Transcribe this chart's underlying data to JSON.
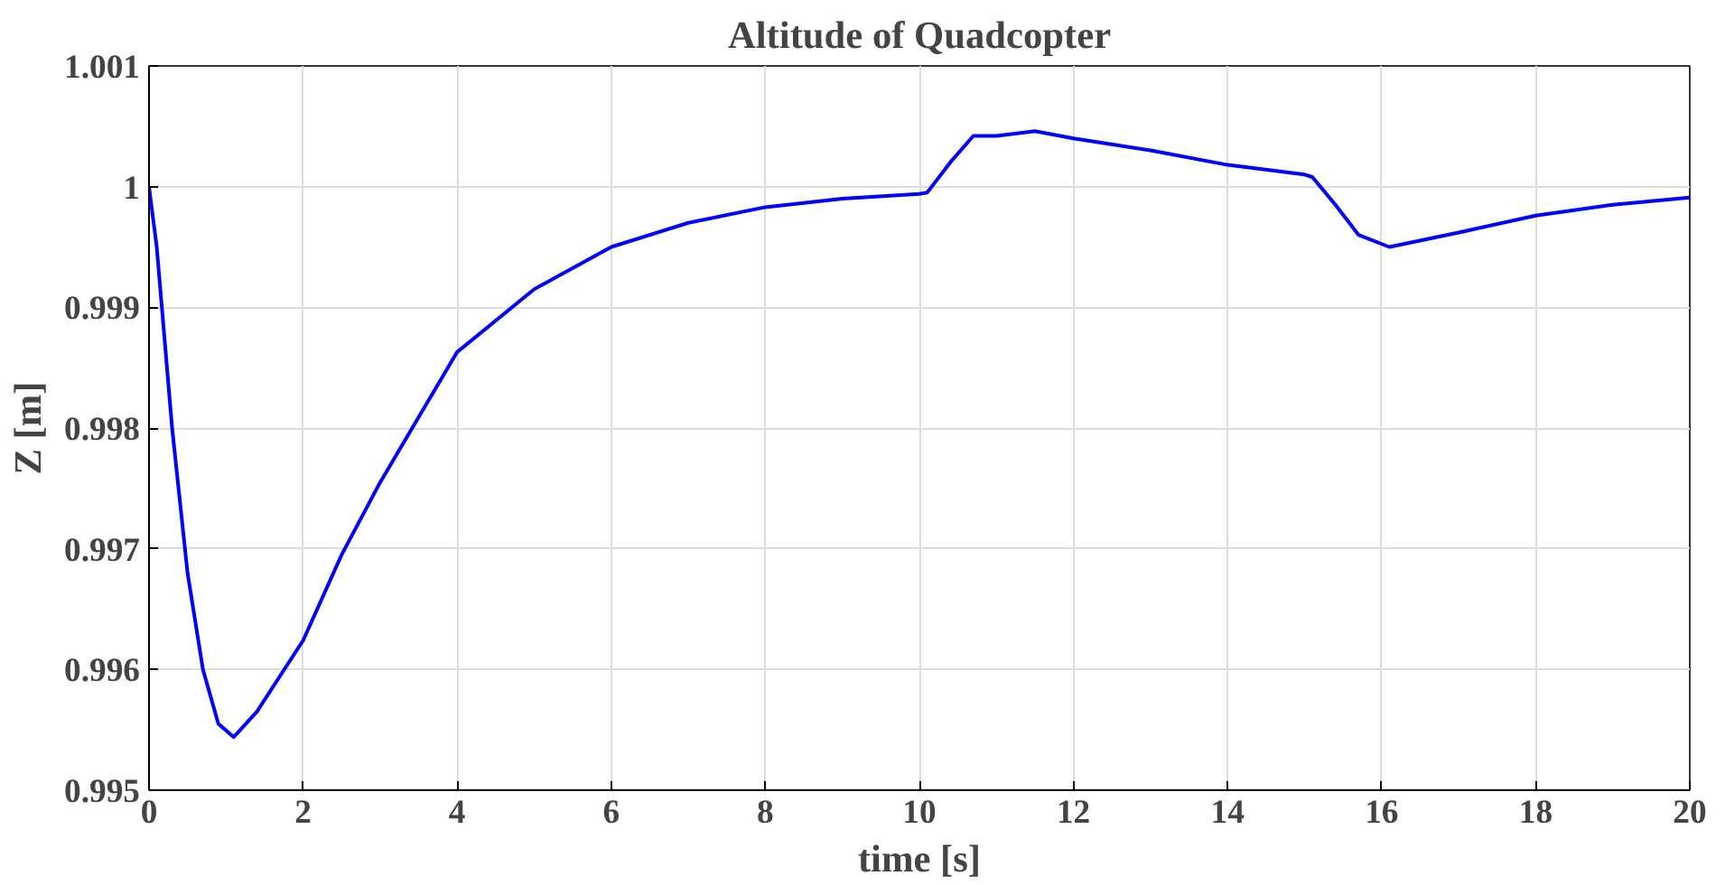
{
  "chart_data": {
    "type": "line",
    "title": "Altitude of Quadcopter",
    "xlabel": "time [s]",
    "ylabel": "Z [m]",
    "xlim": [
      0,
      20
    ],
    "xticks": [
      0,
      2,
      4,
      6,
      8,
      10,
      12,
      14,
      16,
      18,
      20
    ],
    "ylim": [
      0.995,
      1.001
    ],
    "yticks": [
      0.995,
      0.996,
      0.997,
      0.998,
      0.999,
      1,
      1.001
    ],
    "grid": true,
    "line_style": "solid",
    "series": [
      {
        "color": "#0000ff",
        "x": [
          0,
          0.1,
          0.3,
          0.5,
          0.7,
          0.9,
          1.1,
          1.4,
          2,
          2.5,
          3,
          4,
          5,
          6,
          7,
          8,
          9,
          10,
          10.1,
          10.4,
          10.7,
          11,
          11.5,
          12,
          13,
          14,
          15,
          15.1,
          15.4,
          15.7,
          16.1,
          17,
          18,
          19,
          20
        ],
        "values": [
          1.0,
          0.9995,
          0.998,
          0.9968,
          0.996,
          0.99555,
          0.99544,
          0.99565,
          0.99624,
          0.99695,
          0.99755,
          0.99863,
          0.99915,
          0.9995,
          0.9997,
          0.99983,
          0.9999,
          0.99994,
          0.99995,
          1.0002,
          1.00042,
          1.00042,
          1.00046,
          1.0004,
          1.0003,
          1.00018,
          1.0001,
          1.00008,
          0.99985,
          0.9996,
          0.9995,
          0.99962,
          0.99976,
          0.99985,
          0.99991
        ]
      }
    ]
  }
}
